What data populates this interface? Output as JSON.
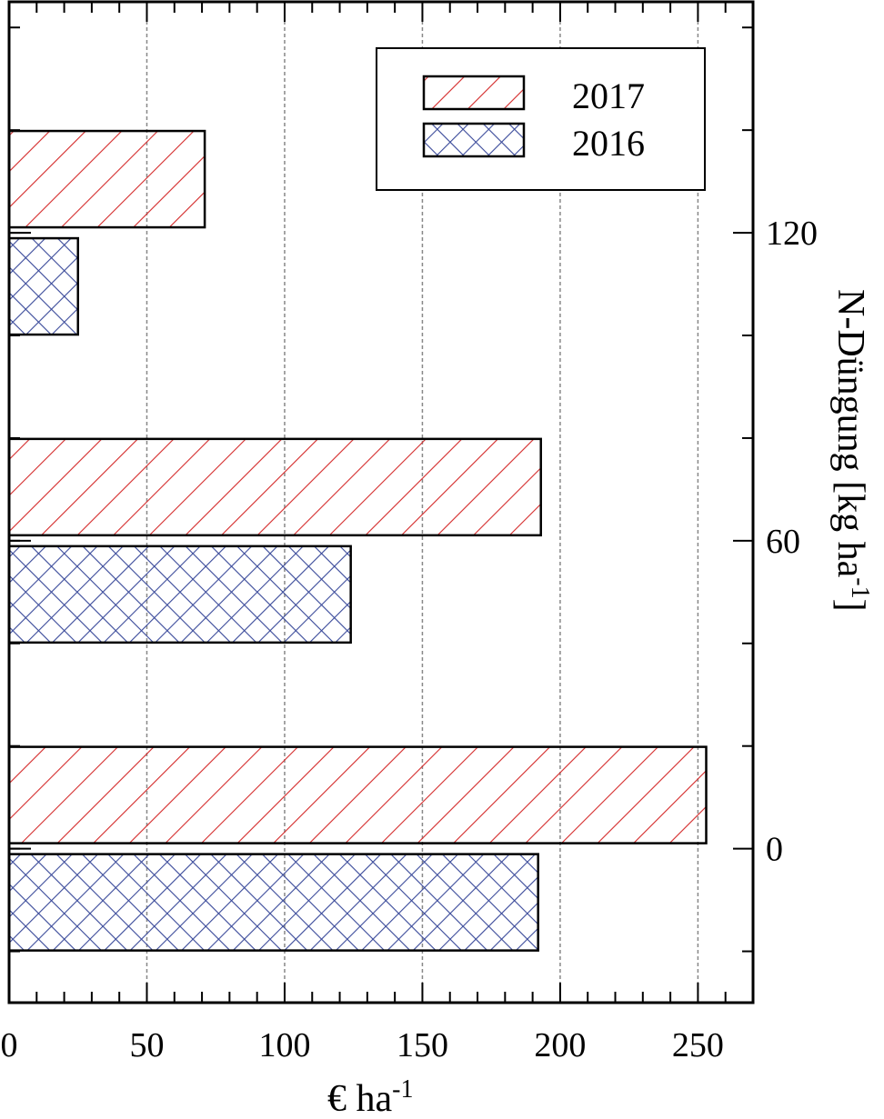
{
  "chart_data": {
    "type": "bar",
    "orientation": "horizontal",
    "title": "",
    "xlabel": "€ ha",
    "xlabel_superscript": "-1",
    "ylabel": "N-Düngung [kg ha",
    "ylabel_superscript": "-1",
    "ylabel_suffix": "]",
    "ylabel_position": "right",
    "xlim": [
      0,
      270
    ],
    "ylim": [
      -30,
      165
    ],
    "x_ticks": [
      0,
      50,
      100,
      150,
      200,
      250
    ],
    "x_tick_labels": [
      "0",
      "50",
      "100",
      "150",
      "200",
      "250"
    ],
    "y_ticks": [
      0,
      60,
      120
    ],
    "y_tick_labels": [
      "0",
      "60",
      "120"
    ],
    "grid": {
      "x": true,
      "y": false,
      "style": "dashed",
      "color": "#888888"
    },
    "categories": [
      "0",
      "60",
      "120"
    ],
    "series": [
      {
        "name": "2017",
        "values": [
          253,
          193,
          71
        ],
        "color": "#d42a2a",
        "hatch": "diagonal"
      },
      {
        "name": "2016",
        "values": [
          192,
          124,
          25
        ],
        "color": "#3a4a9a",
        "hatch": "crosshatch"
      }
    ],
    "legend": {
      "position": "top-right",
      "entries": [
        "2017",
        "2016"
      ]
    }
  }
}
